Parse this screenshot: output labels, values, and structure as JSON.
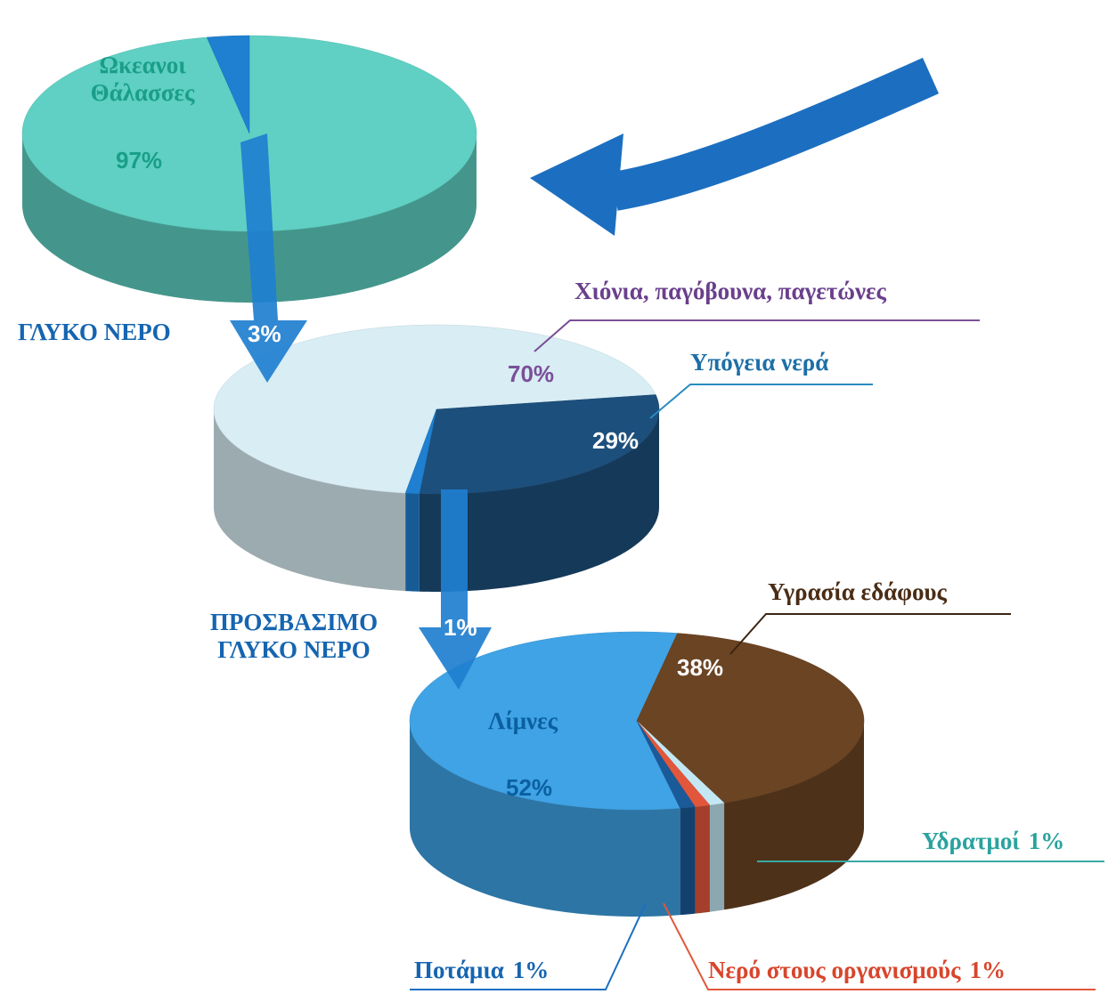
{
  "chart_data": [
    {
      "type": "pie",
      "categories": [
        "Ωκεανοι Θάλασσες",
        "ΓΛΥΚΟ ΝΕΡΟ"
      ],
      "values": [
        97,
        3
      ],
      "value_labels": [
        "97%",
        "3%"
      ],
      "colors": [
        "#5fd0c3",
        "#1f7fd0"
      ]
    },
    {
      "type": "pie",
      "categories": [
        "Χιόνια, παγόβουνα, παγετώνες",
        "Υπόγεια νερά",
        "ΠΡΟΣΒΑΣΙΜΟ ΓΛΥΚΟ ΝΕΡΟ"
      ],
      "values": [
        70,
        29,
        1
      ],
      "value_labels": [
        "70%",
        "29%",
        "1%"
      ],
      "colors": [
        "#d8edf4",
        "#1d4f7c",
        "#1f7fd0"
      ]
    },
    {
      "type": "pie",
      "categories": [
        "Λίμνες",
        "Υγρασία εδάφους",
        "Υδρατμοί",
        "Νερό στους οργανισμούς",
        "Ποτάμια"
      ],
      "values": [
        52,
        38,
        1,
        1,
        1
      ],
      "value_labels": [
        "52%",
        "38%",
        "1%",
        "1%",
        "1%"
      ],
      "colors": [
        "#3fa3e5",
        "#6b4423",
        "#c3e8f4",
        "#e2573b",
        "#1a5a99"
      ]
    }
  ]
}
